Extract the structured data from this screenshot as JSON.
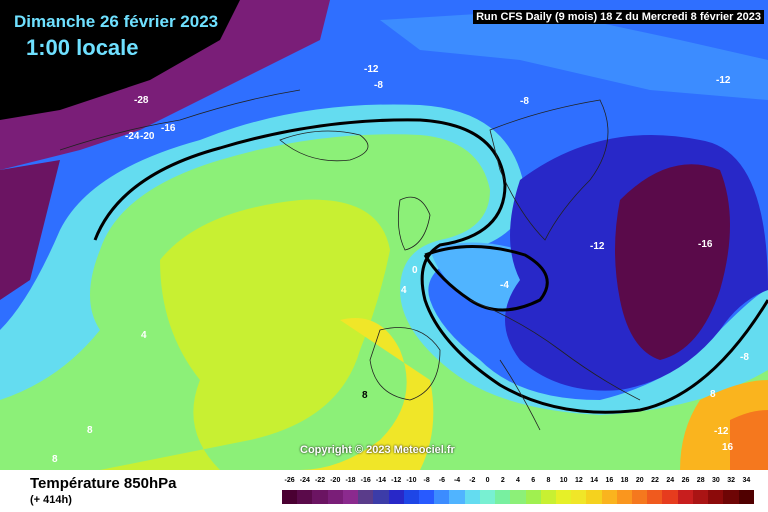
{
  "header": {
    "date": "Dimanche 26 février 2023",
    "local_time": "1:00 locale",
    "run_info": "Run CFS Daily (9 mois) 18 Z du Mercredi 8 février 2023"
  },
  "copyright": "Copyright © 2023 Meteociel.fr",
  "footer": {
    "variable": "Température 850hPa",
    "lead_time": "(+ 414h)"
  },
  "scale": {
    "ticks": [
      "-26",
      "-24",
      "-22",
      "-20",
      "-18",
      "-16",
      "-14",
      "-12",
      "-10",
      "-8",
      "-6",
      "-4",
      "-2",
      "0",
      "2",
      "4",
      "6",
      "8",
      "10",
      "12",
      "14",
      "16",
      "18",
      "20",
      "22",
      "24",
      "26",
      "28",
      "30",
      "32",
      "34"
    ],
    "colors": [
      "#4a0032",
      "#5a0a4a",
      "#6b1462",
      "#7a1e78",
      "#8b2a8e",
      "#5a3c8a",
      "#3c3ca8",
      "#2828c8",
      "#1e46e6",
      "#285aff",
      "#3c8cff",
      "#50b4ff",
      "#64dcf0",
      "#78f0d2",
      "#78f0a0",
      "#8cf078",
      "#a0f050",
      "#c8f032",
      "#e6f028",
      "#f0e628",
      "#f5d21e",
      "#fab41e",
      "#fa961e",
      "#f5781e",
      "#f05a1e",
      "#e63c1e",
      "#c81e1e",
      "#aa1414",
      "#8c0a0a",
      "#6e0505",
      "#500000"
    ]
  },
  "map_labels": [
    "-28",
    "-24",
    "-20",
    "-16",
    "-12",
    "-8",
    "-8",
    "-12",
    "-12",
    "-16",
    "-4",
    "0",
    "4",
    "4",
    "8",
    "8",
    "8",
    "8",
    "-8",
    "-12",
    "16"
  ]
}
